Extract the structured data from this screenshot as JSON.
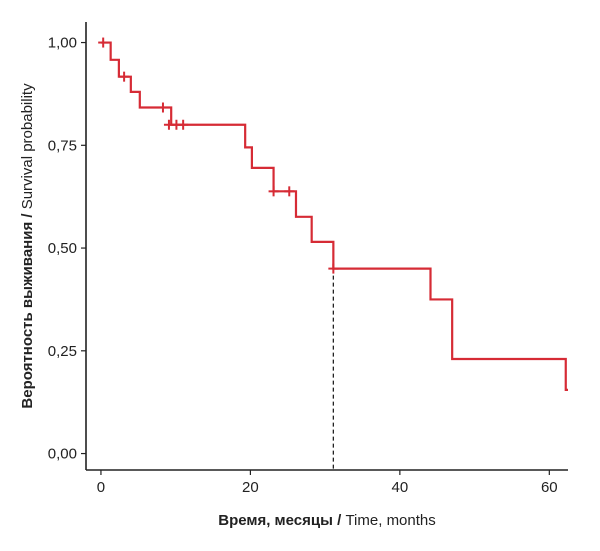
{
  "chart_data": {
    "type": "line",
    "subtype": "kaplan-meier-survival-curve",
    "xlabel_ru": "Время, месяцы",
    "xlabel_sep": " / ",
    "xlabel_en": "Time, months",
    "ylabel_ru": "Вероятность выживания",
    "ylabel_sep": " / ",
    "ylabel_en": "Survival probability",
    "xlim": [
      -2,
      62.5
    ],
    "ylim": [
      -0.04,
      1.05
    ],
    "x_ticks": [
      0,
      20,
      40,
      60
    ],
    "x_tick_labels": [
      "0",
      "20",
      "40",
      "60"
    ],
    "y_ticks": [
      0,
      0.25,
      0.5,
      0.75,
      1.0
    ],
    "y_tick_labels": [
      "0,00",
      "0,25",
      "0,50",
      "0,75",
      "1,00"
    ],
    "grid": false,
    "line_color": "#d62b35",
    "series": [
      {
        "steps": [
          {
            "x": 0,
            "y": 1.0
          },
          {
            "x": 1.3,
            "y": 0.958
          },
          {
            "x": 2.4,
            "y": 0.917
          },
          {
            "x": 4.0,
            "y": 0.88
          },
          {
            "x": 5.2,
            "y": 0.842
          },
          {
            "x": 9.4,
            "y": 0.8
          },
          {
            "x": 19.3,
            "y": 0.745
          },
          {
            "x": 20.2,
            "y": 0.695
          },
          {
            "x": 23.1,
            "y": 0.638
          },
          {
            "x": 26.1,
            "y": 0.576
          },
          {
            "x": 28.2,
            "y": 0.515
          },
          {
            "x": 31.1,
            "y": 0.45
          },
          {
            "x": 44.1,
            "y": 0.375
          },
          {
            "x": 47.0,
            "y": 0.23
          },
          {
            "x": 62.2,
            "y": 0.155
          }
        ],
        "end_x": 62.5,
        "censored": [
          {
            "x": 0.3,
            "y": 1.0
          },
          {
            "x": 3.1,
            "y": 0.917
          },
          {
            "x": 8.3,
            "y": 0.842
          },
          {
            "x": 9.1,
            "y": 0.8
          },
          {
            "x": 10.1,
            "y": 0.8
          },
          {
            "x": 11.0,
            "y": 0.8
          },
          {
            "x": 23.1,
            "y": 0.638
          },
          {
            "x": 25.2,
            "y": 0.638
          },
          {
            "x": 31.1,
            "y": 0.45
          }
        ]
      }
    ],
    "median_survival": {
      "x": 31.1,
      "y": 0.45,
      "style": "dashed"
    }
  }
}
